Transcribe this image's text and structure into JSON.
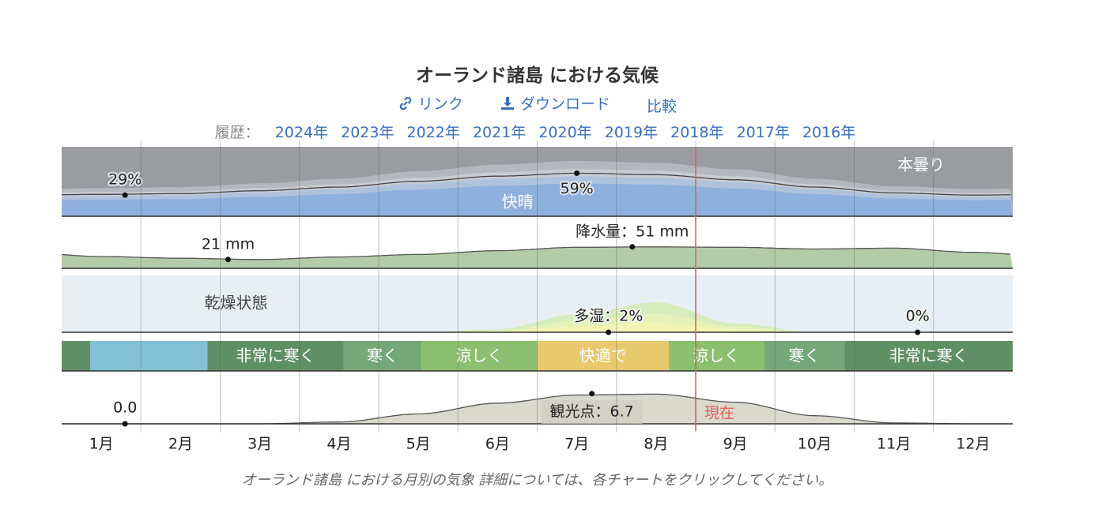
{
  "header": {
    "title": "オーランド諸島 における気候",
    "link_label": "リンク",
    "download_label": "ダウンロード",
    "compare_label": "比較",
    "history_label": "履歴：",
    "years": [
      "2024年",
      "2023年",
      "2022年",
      "2021年",
      "2020年",
      "2019年",
      "2018年",
      "2017年",
      "2016年"
    ]
  },
  "caption": "オーランド諸島 における月別の気象 詳細については、各チャートをクリックしてください。",
  "colors": {
    "overcast": "#9a9ca0",
    "clear": "#8fb0dd",
    "precip": "#b3cba8",
    "dry_band": "#e8eff4",
    "very_cold": "#5f8f64",
    "frigid": "#82c0d6",
    "cold": "#74a878",
    "cool": "#8cbf6f",
    "comfortable": "#e8c96d",
    "tourism": "#d9d9cc",
    "now_line": "#e06060"
  },
  "chart_data": {
    "type": "area",
    "months": [
      "1月",
      "2月",
      "3月",
      "4月",
      "5月",
      "6月",
      "7月",
      "8月",
      "9月",
      "10月",
      "11月",
      "12月"
    ],
    "current_label": "現在",
    "current_month_position": 8.5,
    "cloud_cover": {
      "clear_label": "快晴",
      "overcast_label": "本曇り",
      "clear_percent_monthly": [
        30,
        31,
        35,
        40,
        48,
        55,
        59,
        57,
        50,
        40,
        32,
        29
      ],
      "annotations": [
        {
          "label": "29%",
          "month": 1.3,
          "value": 29
        },
        {
          "label": "59%",
          "month": 7.0,
          "value": 59
        }
      ]
    },
    "precipitation": {
      "unit": "mm",
      "monthly_mm": [
        28,
        24,
        21,
        27,
        33,
        42,
        50,
        51,
        50,
        46,
        48,
        38
      ],
      "annotations": [
        {
          "label": "21 mm",
          "month": 2.6,
          "value": 21
        },
        {
          "label": "降水量：51 mm",
          "month": 7.7,
          "value": 51
        }
      ]
    },
    "humidity": {
      "dry_label": "乾燥状態",
      "muggy_percent_monthly": [
        0,
        0,
        0,
        0,
        0,
        0.2,
        1.2,
        2,
        0.6,
        0,
        0,
        0
      ],
      "annotations": [
        {
          "label": "多湿：2%",
          "month": 7.4,
          "value": 2
        },
        {
          "label": "0%",
          "month": 11.3,
          "value": 0
        }
      ]
    },
    "temperature_bands": [
      {
        "label": "",
        "start": 0.5,
        "end": 0.86,
        "class": "very_cold"
      },
      {
        "label": "",
        "start": 0.86,
        "end": 2.34,
        "class": "frigid"
      },
      {
        "label": "非常に寒く",
        "start": 2.34,
        "end": 4.06,
        "class": "very_cold"
      },
      {
        "label": "寒く",
        "start": 4.06,
        "end": 5.04,
        "class": "cold"
      },
      {
        "label": "涼しく",
        "start": 5.04,
        "end": 6.5,
        "class": "cool"
      },
      {
        "label": "快適で",
        "start": 6.5,
        "end": 8.16,
        "class": "comfortable"
      },
      {
        "label": "涼しく",
        "start": 8.16,
        "end": 9.36,
        "class": "cool"
      },
      {
        "label": "寒く",
        "start": 9.36,
        "end": 10.38,
        "class": "cold"
      },
      {
        "label": "非常に寒く",
        "start": 10.38,
        "end": 12.5,
        "class": "very_cold"
      }
    ],
    "tourism_score": {
      "monthly": [
        0,
        0,
        0,
        0.4,
        2.2,
        4.6,
        6.4,
        6.6,
        4.8,
        1.8,
        0.2,
        0
      ],
      "annotations": [
        {
          "label": "0.0",
          "month": 1.3,
          "value": 0
        },
        {
          "label": "観光点：6.7",
          "month": 7.1,
          "value": 6.7
        }
      ]
    }
  }
}
